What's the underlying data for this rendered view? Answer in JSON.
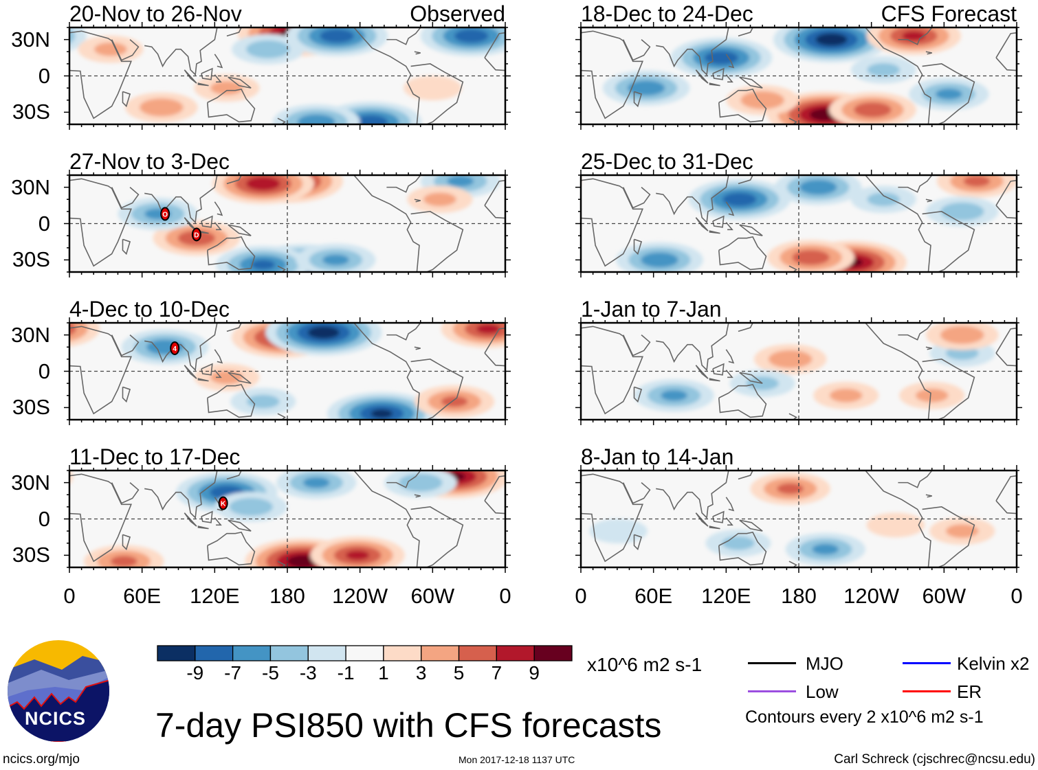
{
  "title": "7-day PSI850 with CFS forecasts",
  "units": "x10^6 m2 s-1",
  "footer": {
    "left": "ncics.org/mjo",
    "center": "Mon 2017-12-18 1137 UTC",
    "right": "Carl Schreck (cjschrec@ncsu.edu)"
  },
  "logo_text": "NCICS",
  "lat_labels": [
    "30N",
    "0",
    "30S"
  ],
  "lon_labels": [
    "0",
    "60E",
    "120E",
    "180",
    "120W",
    "60W",
    "0"
  ],
  "colorbar": {
    "labels": [
      "-9",
      "-7",
      "-5",
      "-3",
      "-1",
      "1",
      "3",
      "5",
      "7",
      "9"
    ],
    "colors": [
      "#0b2f63",
      "#2266ac",
      "#4494c4",
      "#93c5de",
      "#d1e5f0",
      "#f7f7f7",
      "#fddbc7",
      "#f4a582",
      "#d6604d",
      "#b2182b",
      "#67001f"
    ]
  },
  "legend": {
    "items": [
      {
        "label": "MJO",
        "color": "#000000"
      },
      {
        "label": "Kelvin x2",
        "color": "#0000ff"
      },
      {
        "label": "Low",
        "color": "#9b4ee0"
      },
      {
        "label": "ER",
        "color": "#ff0000"
      }
    ],
    "note": "Contours every 2 x10^6 m2 s-1"
  },
  "chart_data": {
    "type": "heatmap",
    "variable": "PSI850 anomaly",
    "lon_range": [
      0,
      360
    ],
    "lat_range": [
      -40,
      40
    ],
    "panels": [
      {
        "title": "20-Nov to 26-Nov",
        "tag": "Observed",
        "blobs": [
          [
            187,
            35,
            10
          ],
          [
            221,
            33,
            -8
          ],
          [
            332,
            33,
            -8
          ],
          [
            76,
            -26,
            4
          ],
          [
            249,
            -38,
            -8
          ],
          [
            164,
            22,
            -4
          ],
          [
            34,
            22,
            3
          ],
          [
            130,
            -10,
            3
          ],
          [
            204,
            -38,
            -6
          ],
          [
            300,
            -10,
            2
          ]
        ],
        "storms": []
      },
      {
        "title": "27-Nov to 3-Dec",
        "tag": "",
        "blobs": [
          [
            181,
            35,
            9
          ],
          [
            160,
            33,
            8
          ],
          [
            193,
            -36,
            -10
          ],
          [
            160,
            -34,
            -7
          ],
          [
            105,
            -12,
            6
          ],
          [
            73,
            8,
            -5
          ],
          [
            323,
            35,
            -5
          ],
          [
            306,
            20,
            3
          ],
          [
            220,
            -30,
            -5
          ]
        ],
        "storms": [
          [
            79,
            8,
            "O"
          ],
          [
            105,
            -9,
            "D"
          ]
        ]
      },
      {
        "title": "4-Dec to 10-Dec",
        "tag": "",
        "blobs": [
          [
            176,
            28,
            8
          ],
          [
            210,
            32,
            -10
          ],
          [
            79,
            20,
            -6
          ],
          [
            346,
            35,
            7
          ],
          [
            258,
            -35,
            -9
          ],
          [
            318,
            -25,
            5
          ],
          [
            130,
            -5,
            3
          ],
          [
            160,
            -25,
            -3
          ]
        ],
        "storms": [
          [
            87,
            19,
            "4"
          ]
        ]
      },
      {
        "title": "11-Dec to 17-Dec",
        "tag": "",
        "blobs": [
          [
            130,
            22,
            -8
          ],
          [
            193,
            -35,
            10
          ],
          [
            238,
            -30,
            7
          ],
          [
            318,
            35,
            9
          ],
          [
            204,
            30,
            -5
          ],
          [
            45,
            -35,
            5
          ],
          [
            150,
            10,
            -4
          ],
          [
            290,
            30,
            -4
          ]
        ],
        "storms": [
          [
            127,
            13,
            "K"
          ]
        ]
      },
      {
        "title": "18-Dec to 24-Dec",
        "tag": "CFS Forecast",
        "blobs": [
          [
            207,
            30,
            -10
          ],
          [
            116,
            15,
            -8
          ],
          [
            202,
            -32,
            10
          ],
          [
            241,
            -28,
            6
          ],
          [
            54,
            -10,
            -6
          ],
          [
            275,
            33,
            7
          ],
          [
            304,
            -15,
            -5
          ],
          [
            150,
            -20,
            4
          ],
          [
            250,
            5,
            -3
          ]
        ],
        "storms": []
      },
      {
        "title": "25-Dec to 31-Dec",
        "tag": "",
        "blobs": [
          [
            131,
            20,
            -8
          ],
          [
            196,
            30,
            -6
          ],
          [
            224,
            -32,
            9
          ],
          [
            190,
            -28,
            6
          ],
          [
            65,
            -30,
            -6
          ],
          [
            327,
            35,
            5
          ],
          [
            315,
            10,
            -4
          ],
          [
            250,
            20,
            -3
          ]
        ],
        "storms": []
      },
      {
        "title": "1-Jan to 7-Jan",
        "tag": "",
        "blobs": [
          [
            173,
            10,
            4
          ],
          [
            77,
            -20,
            -5
          ],
          [
            219,
            -20,
            3
          ],
          [
            315,
            15,
            -3
          ],
          [
            315,
            30,
            4
          ],
          [
            150,
            -10,
            -3
          ],
          [
            290,
            -20,
            3
          ]
        ],
        "storms": []
      },
      {
        "title": "8-Jan to 14-Jan",
        "tag": "",
        "blobs": [
          [
            173,
            25,
            5
          ],
          [
            202,
            -25,
            -5
          ],
          [
            315,
            -10,
            3
          ],
          [
            31,
            -10,
            -2
          ],
          [
            130,
            -20,
            -3
          ],
          [
            260,
            -5,
            2
          ]
        ],
        "storms": []
      }
    ]
  }
}
